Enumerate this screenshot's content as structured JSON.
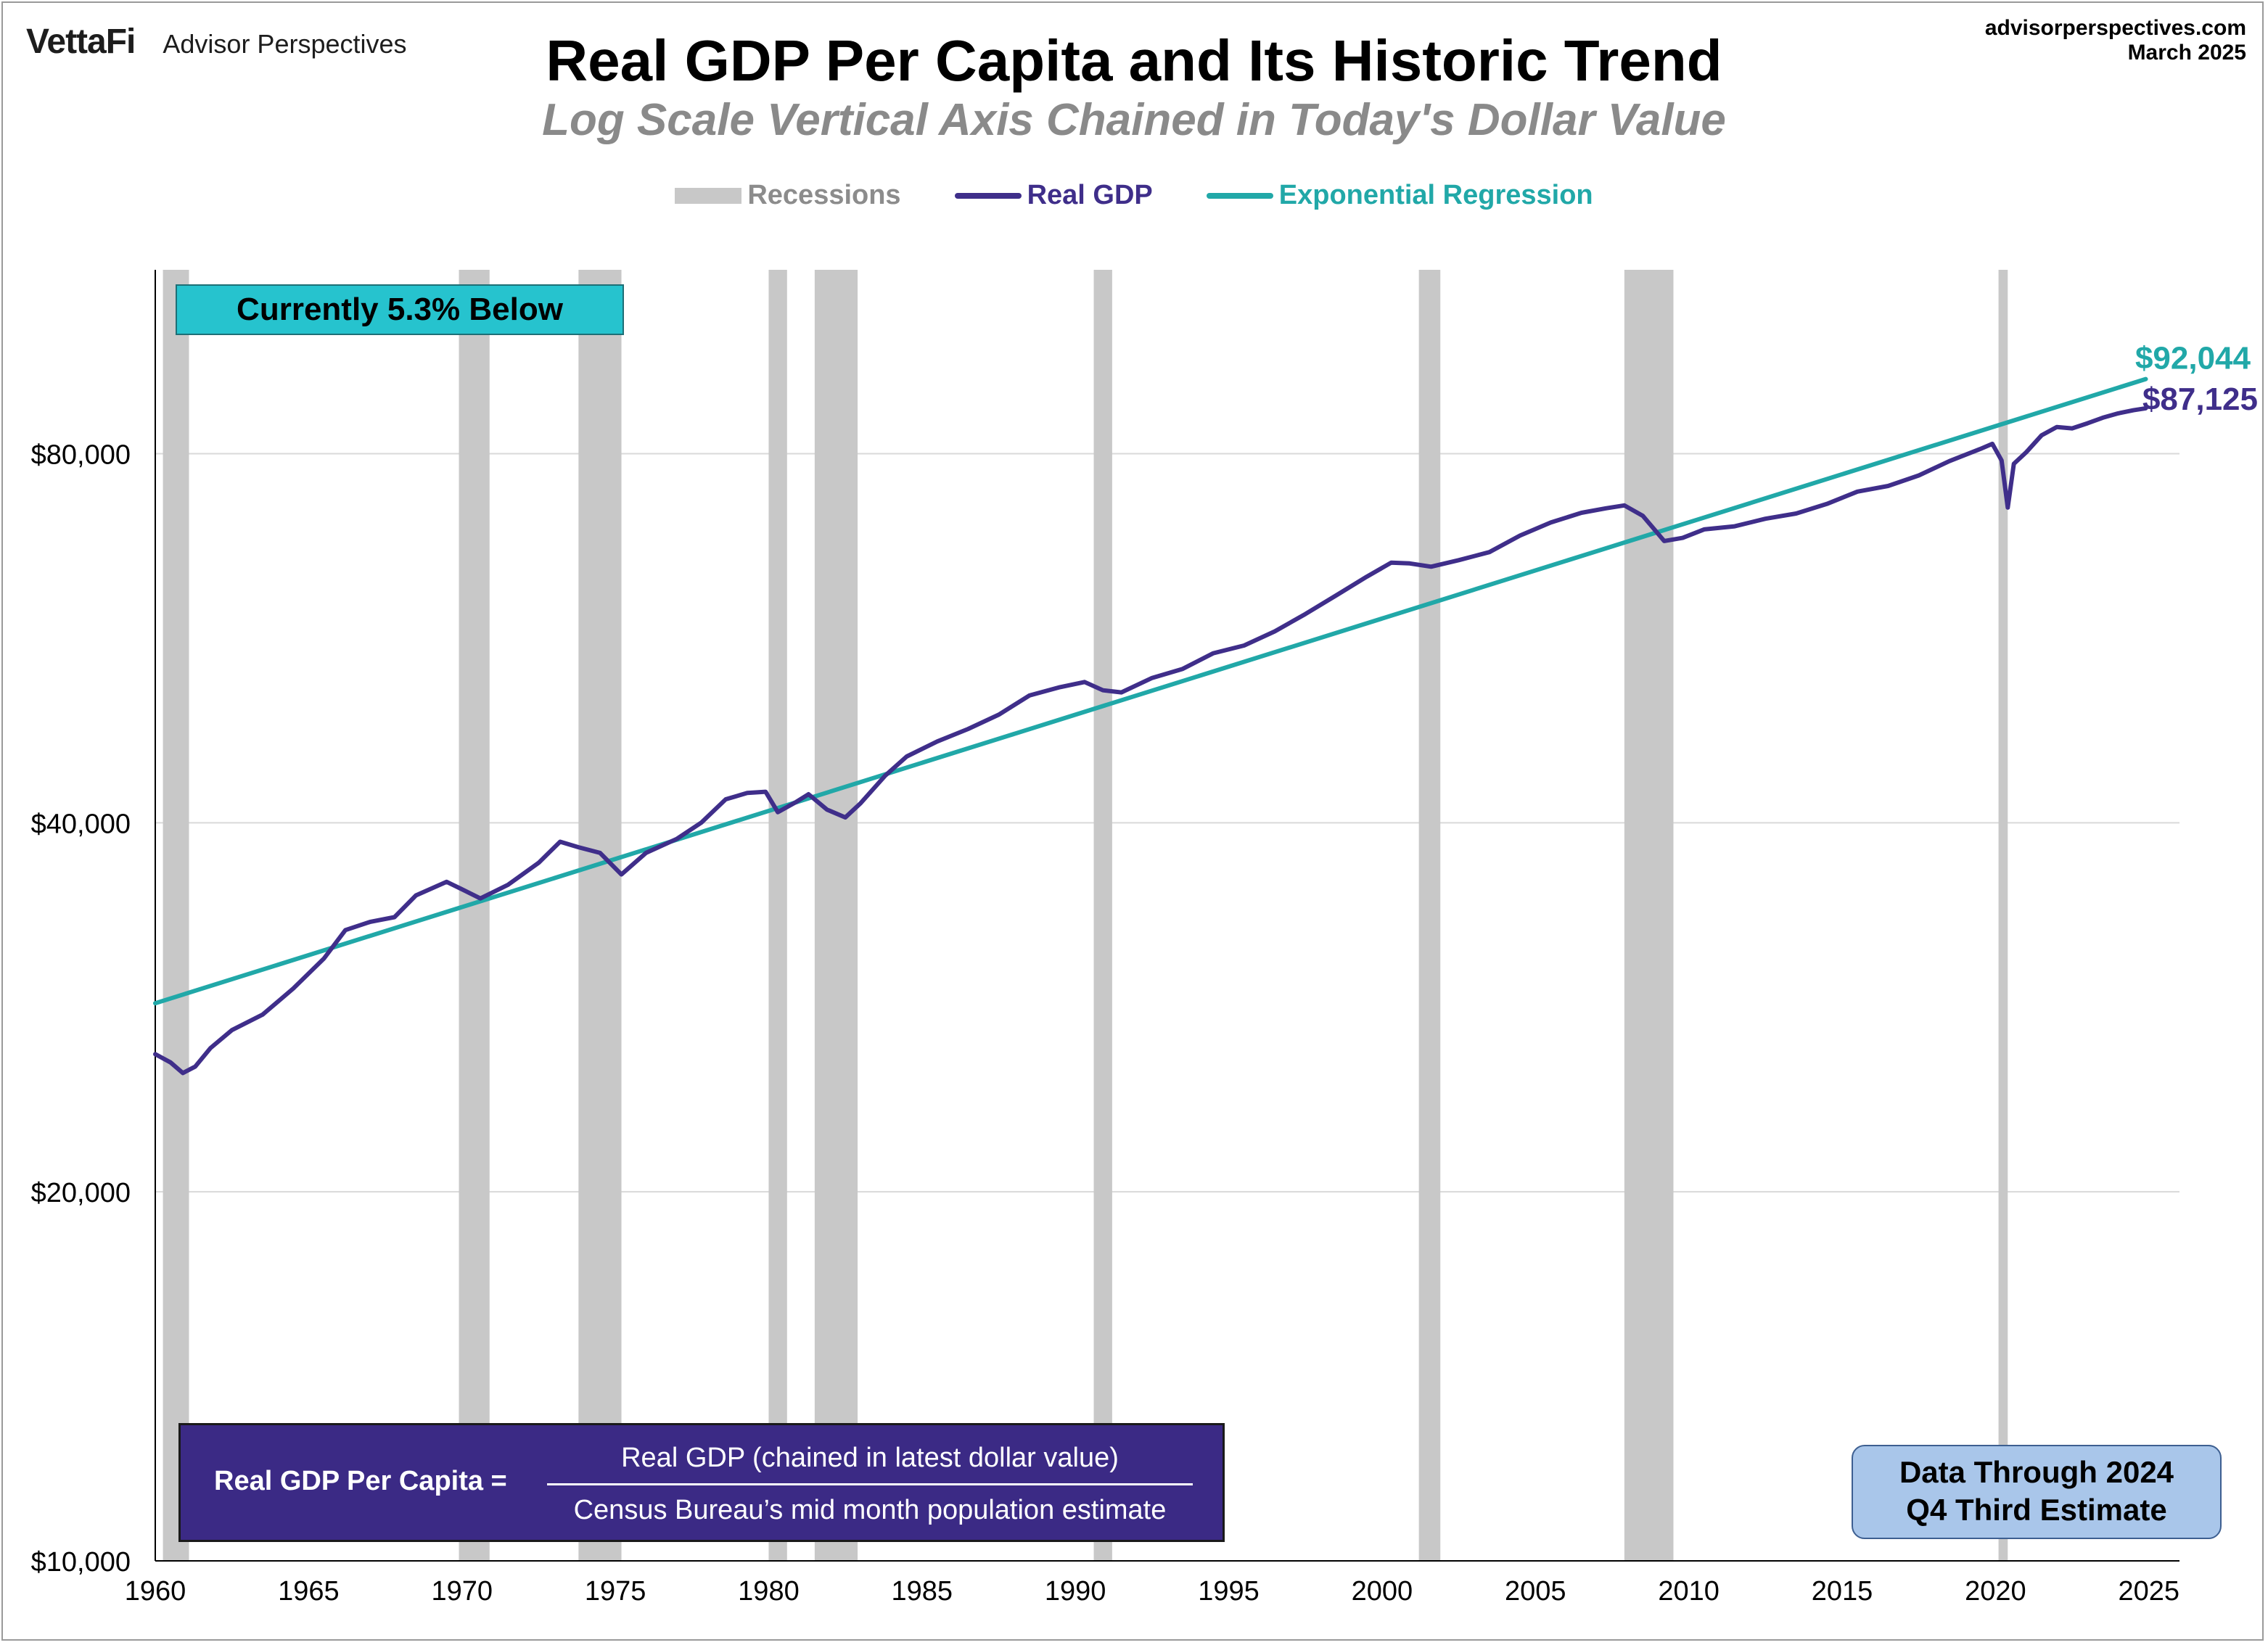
{
  "header": {
    "logo": "VettaFi",
    "brand": "Advisor Perspectives",
    "title": "Real GDP Per Capita and Its Historic Trend",
    "subtitle": "Log Scale Vertical Axis Chained in Today's Dollar Value",
    "source_url": "advisorperspectives.com",
    "date": "March 2025"
  },
  "legend": {
    "recessions": "Recessions",
    "real_gdp": "Real GDP",
    "regression": "Exponential Regression"
  },
  "callout": "Currently 5.3% Below",
  "formula": {
    "lhs": "Real GDP Per Capita =",
    "numerator": "Real GDP (chained in latest dollar value)",
    "denominator": "Census Bureau’s mid month population estimate"
  },
  "data_note": {
    "line1": "Data Through 2024",
    "line2": "Q4 Third Estimate"
  },
  "end_labels": {
    "regression": "$92,044",
    "real_gdp": "$87,125"
  },
  "colors": {
    "real_gdp": "#3f2e8a",
    "regression": "#21a8a8",
    "recession": "#c8c8c8",
    "grid": "#d9d9d9"
  },
  "chart_data": {
    "type": "line",
    "title": "Real GDP Per Capita and Its Historic Trend",
    "subtitle": "Log Scale Vertical Axis Chained in Today's Dollar Value",
    "xlim": [
      1960,
      2026
    ],
    "ylim": [
      10000,
      113000
    ],
    "y_scale": "log",
    "y_ticks": [
      {
        "value": 10000,
        "label": "$10,000"
      },
      {
        "value": 20000,
        "label": "$20,000"
      },
      {
        "value": 40000,
        "label": "$40,000"
      },
      {
        "value": 80000,
        "label": "$80,000"
      }
    ],
    "x_ticks": [
      1960,
      1965,
      1970,
      1975,
      1980,
      1985,
      1990,
      1995,
      2000,
      2005,
      2010,
      2015,
      2020,
      2025
    ],
    "grid": true,
    "legend_position": "top-center",
    "recessions": [
      [
        1960.25,
        1961.1
      ],
      [
        1969.9,
        1970.9
      ],
      [
        1973.8,
        1975.2
      ],
      [
        1980.0,
        1980.6
      ],
      [
        1981.5,
        1982.9
      ],
      [
        1990.6,
        1991.2
      ],
      [
        2001.2,
        2001.9
      ],
      [
        2007.9,
        2009.5
      ],
      [
        2020.1,
        2020.4
      ]
    ],
    "series": [
      {
        "name": "Real GDP",
        "points": [
          [
            1960.0,
            25900
          ],
          [
            1960.5,
            25500
          ],
          [
            1960.9,
            25000
          ],
          [
            1961.3,
            25300
          ],
          [
            1961.8,
            26200
          ],
          [
            1962.5,
            27100
          ],
          [
            1963.5,
            27900
          ],
          [
            1964.5,
            29300
          ],
          [
            1965.5,
            31000
          ],
          [
            1966.2,
            32700
          ],
          [
            1967.0,
            33200
          ],
          [
            1967.8,
            33500
          ],
          [
            1968.5,
            34900
          ],
          [
            1969.5,
            35800
          ],
          [
            1970.0,
            35300
          ],
          [
            1970.6,
            34700
          ],
          [
            1971.5,
            35600
          ],
          [
            1972.5,
            37100
          ],
          [
            1973.2,
            38600
          ],
          [
            1973.8,
            38200
          ],
          [
            1974.5,
            37800
          ],
          [
            1975.2,
            36300
          ],
          [
            1976.0,
            37800
          ],
          [
            1977.0,
            38800
          ],
          [
            1977.8,
            40000
          ],
          [
            1978.6,
            41800
          ],
          [
            1979.3,
            42300
          ],
          [
            1979.9,
            42400
          ],
          [
            1980.3,
            40800
          ],
          [
            1980.9,
            41600
          ],
          [
            1981.3,
            42200
          ],
          [
            1981.9,
            41000
          ],
          [
            1982.5,
            40400
          ],
          [
            1983.0,
            41500
          ],
          [
            1983.8,
            43700
          ],
          [
            1984.5,
            45300
          ],
          [
            1985.5,
            46600
          ],
          [
            1986.5,
            47700
          ],
          [
            1987.5,
            49000
          ],
          [
            1988.5,
            50800
          ],
          [
            1989.5,
            51600
          ],
          [
            1990.3,
            52100
          ],
          [
            1990.9,
            51300
          ],
          [
            1991.5,
            51100
          ],
          [
            1992.5,
            52500
          ],
          [
            1993.5,
            53400
          ],
          [
            1994.5,
            55000
          ],
          [
            1995.5,
            55800
          ],
          [
            1996.5,
            57300
          ],
          [
            1997.5,
            59200
          ],
          [
            1998.5,
            61300
          ],
          [
            1999.5,
            63500
          ],
          [
            2000.3,
            65200
          ],
          [
            2000.9,
            65100
          ],
          [
            2001.6,
            64700
          ],
          [
            2002.5,
            65500
          ],
          [
            2003.5,
            66500
          ],
          [
            2004.5,
            68600
          ],
          [
            2005.5,
            70300
          ],
          [
            2006.5,
            71600
          ],
          [
            2007.3,
            72200
          ],
          [
            2007.9,
            72600
          ],
          [
            2008.5,
            71200
          ],
          [
            2009.2,
            67900
          ],
          [
            2009.8,
            68300
          ],
          [
            2010.5,
            69400
          ],
          [
            2011.5,
            69800
          ],
          [
            2012.5,
            70800
          ],
          [
            2013.5,
            71500
          ],
          [
            2014.5,
            72800
          ],
          [
            2015.5,
            74500
          ],
          [
            2016.5,
            75300
          ],
          [
            2017.5,
            76800
          ],
          [
            2018.5,
            78900
          ],
          [
            2019.5,
            80700
          ],
          [
            2019.9,
            81500
          ],
          [
            2020.2,
            79000
          ],
          [
            2020.4,
            72300
          ],
          [
            2020.6,
            78500
          ],
          [
            2021.0,
            80200
          ],
          [
            2021.5,
            82800
          ],
          [
            2022.0,
            84100
          ],
          [
            2022.5,
            83900
          ],
          [
            2023.0,
            84700
          ],
          [
            2023.5,
            85600
          ],
          [
            2024.0,
            86300
          ],
          [
            2024.5,
            86800
          ],
          [
            2024.9,
            87125
          ]
        ]
      },
      {
        "name": "Exponential Regression",
        "points": [
          [
            1960.0,
            28500
          ],
          [
            2024.9,
            92044
          ]
        ]
      }
    ]
  }
}
